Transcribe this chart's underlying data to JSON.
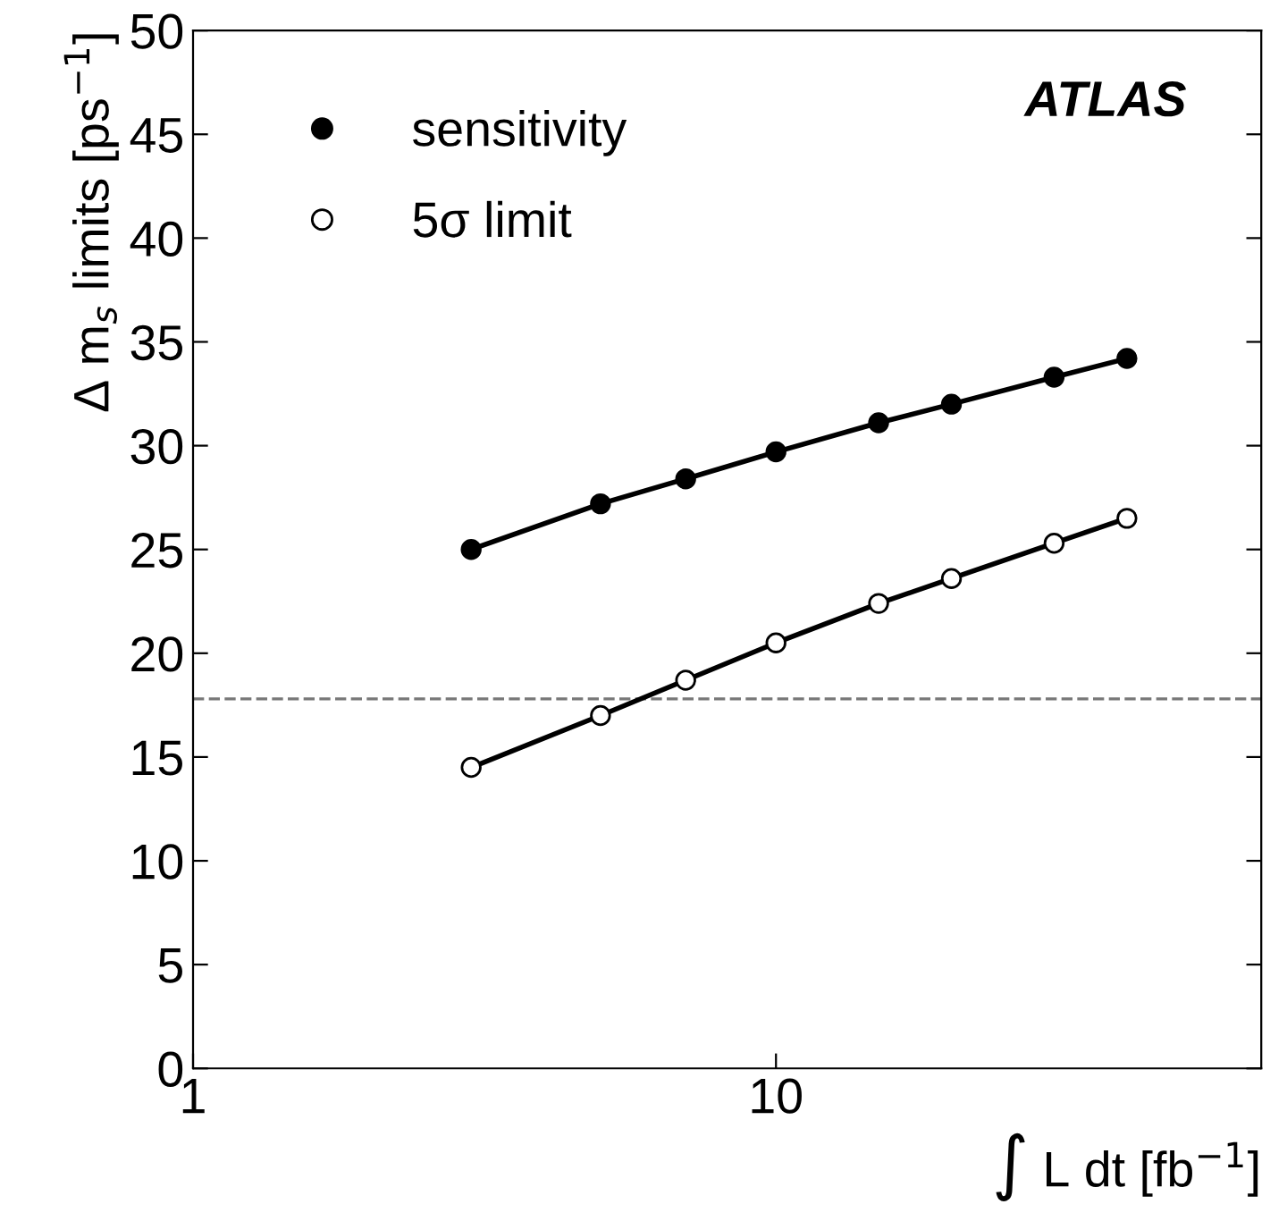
{
  "chart_data": {
    "type": "line",
    "xlabel": "∫ L dt [fb$^{−1}$]",
    "ylabel": "Δ m$_{s}$ limits [ps$^{−1}$]",
    "log": "x",
    "x": [
      3,
      5,
      7,
      10,
      15,
      20,
      30,
      40
    ],
    "series": [
      {
        "name": "sensitivity",
        "color": "#000000",
        "values": [
          25.0,
          27.2,
          28.4,
          29.7,
          31.1,
          32.0,
          33.3,
          34.2
        ]
      },
      {
        "name": "5σ limit",
        "color": "#000000",
        "values": [
          14.5,
          17.0,
          18.7,
          20.5,
          22.4,
          23.6,
          25.3,
          26.5
        ]
      }
    ],
    "marker": "circle",
    "xlim": [
      1,
      68
    ],
    "xticks": [
      1,
      10
    ],
    "ylim": [
      0,
      50
    ],
    "yticks": [
      0,
      5,
      10,
      15,
      20,
      25,
      30,
      35,
      40,
      45,
      50
    ],
    "ref_lines": [
      {
        "axis": "y",
        "value": 17.8,
        "color": "#777777",
        "line_style": "dashed"
      }
    ],
    "annotations": [
      "ATLAS"
    ],
    "legend": "top left",
    "line_style": "solid"
  }
}
